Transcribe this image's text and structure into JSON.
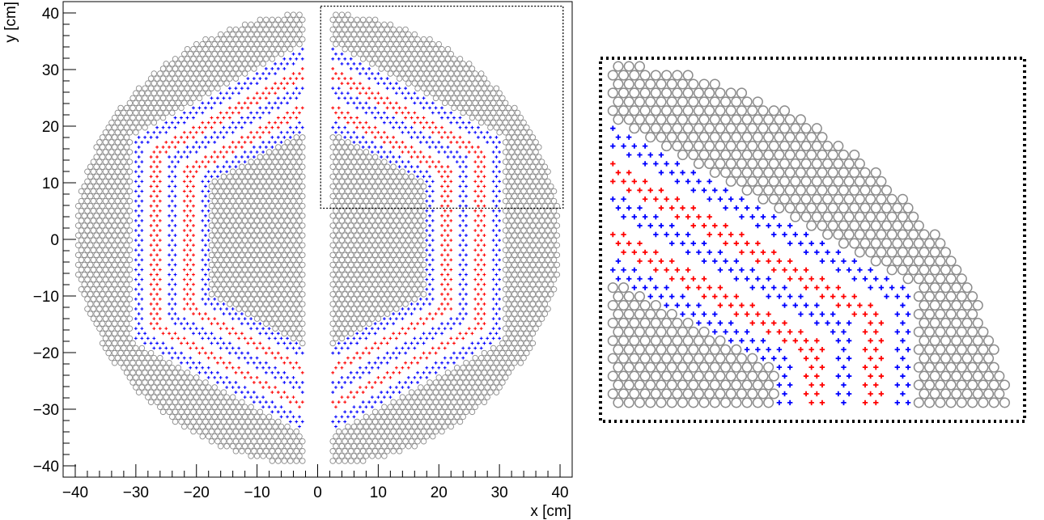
{
  "chart_data": [
    {
      "type": "scatter",
      "xlabel": "x [cm]",
      "ylabel": "y [cm]",
      "xlim": [
        -42,
        42
      ],
      "ylim": [
        -42,
        42
      ],
      "xticks": [
        -40,
        -30,
        -20,
        -10,
        0,
        10,
        20,
        30,
        40
      ],
      "xtick_labels": [
        "−40",
        "−30",
        "−20",
        "−10",
        "0",
        "10",
        "20",
        "30",
        "40"
      ],
      "yticks": [
        -40,
        -30,
        -20,
        -10,
        0,
        10,
        20,
        30,
        40
      ],
      "ytick_labels": [
        "−40",
        "−30",
        "−20",
        "−10",
        "0",
        "10",
        "20",
        "30",
        "40"
      ],
      "grid": false,
      "layout": {
        "outer_radius_cm": 40,
        "hexagon_inner_apothem_cm": 17.5,
        "hexagon_outer_apothem_cm": 31,
        "central_gap_half_width_cm": 2.5,
        "pitch_cm": 1.0
      },
      "zoom_region": {
        "x": [
          0.5,
          40.5
        ],
        "y": [
          5.5,
          41.2
        ]
      },
      "series": [
        {
          "marker": "open-circle",
          "color": "#8c8c8c",
          "regions": [
            {
              "r_min": 0,
              "r_max": 17.5
            },
            {
              "r_min": 31,
              "r_max": 40
            }
          ]
        },
        {
          "marker": "cross",
          "color": "#0000ff",
          "layers": [
            {
              "r_min": 17.6,
              "r_max": 19.4
            },
            {
              "r_min": 23.1,
              "r_max": 24.9
            },
            {
              "r_min": 28.6,
              "r_max": 30.4
            }
          ]
        },
        {
          "marker": "cross",
          "color": "#ff0000",
          "layers": [
            {
              "r_min": 20.3,
              "r_max": 22.1
            },
            {
              "r_min": 25.8,
              "r_max": 27.6
            }
          ]
        }
      ]
    }
  ],
  "colors": {
    "passive": "#8c8c8c",
    "blue": "#0000ff",
    "red": "#ff0000",
    "frame": "#000000"
  }
}
